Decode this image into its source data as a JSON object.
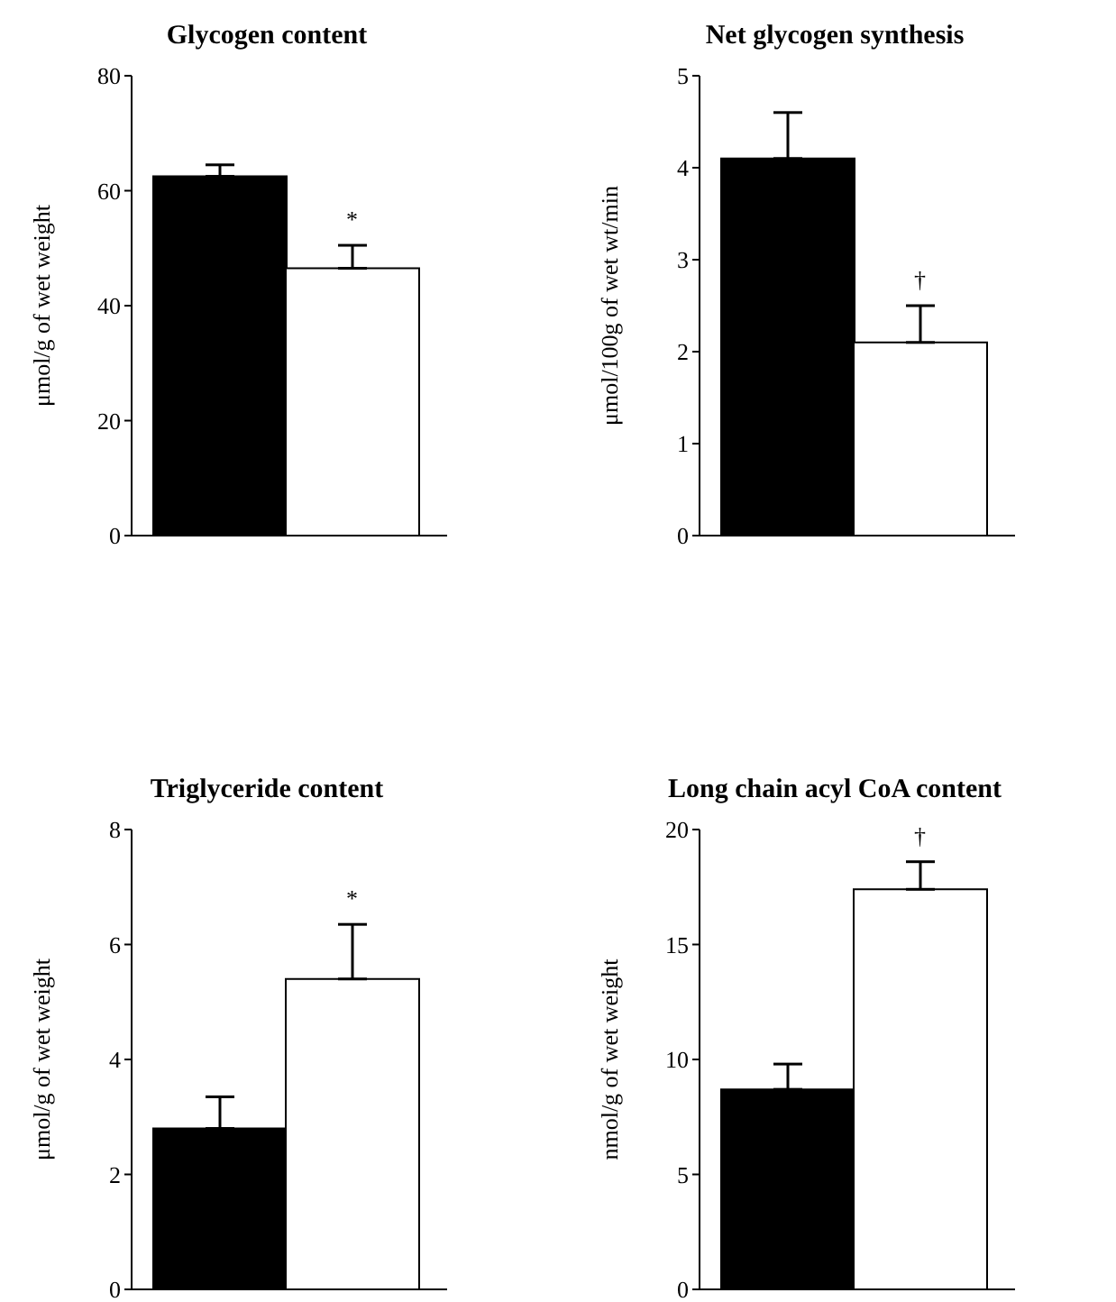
{
  "chart_data": [
    {
      "type": "bar",
      "title": "Glycogen content",
      "ylabel": "μmol/g of wet weight",
      "categories": [
        null,
        null
      ],
      "values": [
        62.5,
        46.5
      ],
      "colors": [
        "#000000",
        "#ffffff"
      ],
      "errors": [
        [
          62.5,
          64.5
        ],
        [
          46.5,
          50.5
        ]
      ],
      "ylim": [
        0,
        80
      ],
      "yticks": [
        0,
        20,
        40,
        60,
        80
      ],
      "annotations": [
        "*"
      ]
    },
    {
      "type": "bar",
      "title": "Net glycogen synthesis",
      "ylabel": "μmol/100g of wet wt/min",
      "categories": [
        null,
        null
      ],
      "values": [
        4.1,
        2.1
      ],
      "colors": [
        "#000000",
        "#ffffff"
      ],
      "errors": [
        [
          4.1,
          4.6
        ],
        [
          2.1,
          2.5
        ]
      ],
      "ylim": [
        0,
        5
      ],
      "yticks": [
        0,
        1,
        2,
        3,
        4,
        5
      ],
      "annotations": [
        "†"
      ]
    },
    {
      "type": "bar",
      "title": "Triglyceride content",
      "ylabel": "μmol/g of wet weight",
      "categories": [
        null,
        null
      ],
      "values": [
        2.8,
        5.4
      ],
      "colors": [
        "#000000",
        "#ffffff"
      ],
      "errors": [
        [
          2.8,
          3.35
        ],
        [
          5.4,
          6.35
        ]
      ],
      "ylim": [
        0,
        8
      ],
      "yticks": [
        0,
        2,
        4,
        6,
        8
      ],
      "annotations": [
        "*"
      ]
    },
    {
      "type": "bar",
      "title": "Long chain acyl CoA content",
      "ylabel": "nmol/g of wet weight",
      "categories": [
        null,
        null
      ],
      "values": [
        8.7,
        17.4
      ],
      "colors": [
        "#000000",
        "#ffffff"
      ],
      "errors": [
        [
          8.7,
          9.8
        ],
        [
          17.4,
          18.6
        ]
      ],
      "ylim": [
        0,
        20
      ],
      "yticks": [
        0,
        5,
        10,
        15,
        20
      ],
      "annotations": [
        "†"
      ]
    }
  ]
}
